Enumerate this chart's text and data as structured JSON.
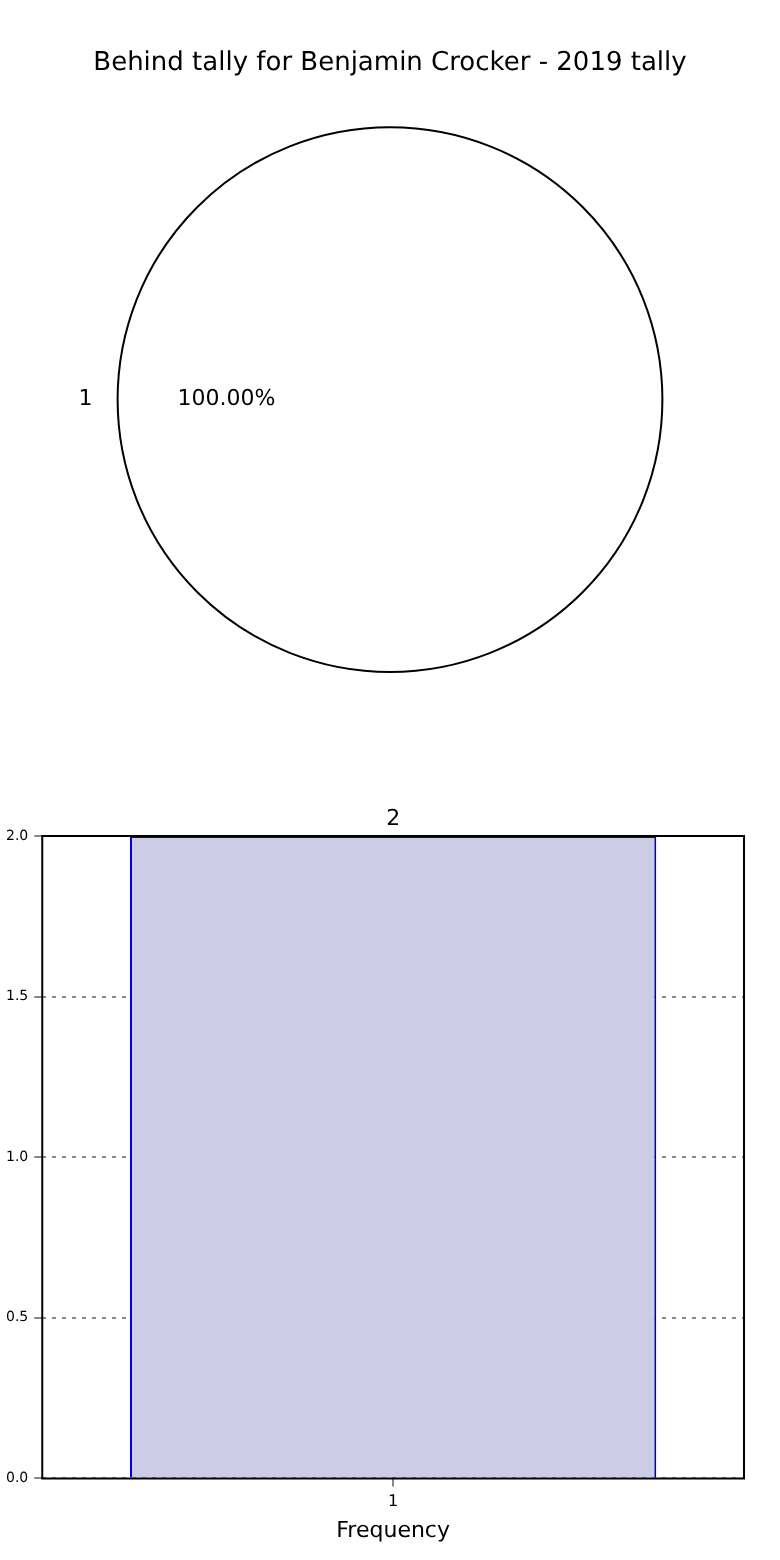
{
  "chart_data": [
    {
      "type": "pie",
      "title": "Behind tally for Benjamin Crocker - 2019 tally",
      "categories": [
        "1"
      ],
      "values": [
        100
      ],
      "colors": [
        "#ffffff"
      ],
      "value_labels": [
        "100.00%"
      ],
      "legend": false
    },
    {
      "type": "bar",
      "categories": [
        "1"
      ],
      "values": [
        2
      ],
      "color": "#cccce6",
      "xlabel": "Frequency",
      "ylim": [
        0,
        2
      ],
      "yticks": [
        {
          "value": 0,
          "label": "0.0"
        },
        {
          "value": 0.5,
          "label": "0.5"
        },
        {
          "value": 1,
          "label": "1.0"
        },
        {
          "value": 1.5,
          "label": "1.5"
        },
        {
          "value": 2,
          "label": "2.0"
        }
      ],
      "grid": true,
      "data_labels": true,
      "legend": false
    }
  ]
}
